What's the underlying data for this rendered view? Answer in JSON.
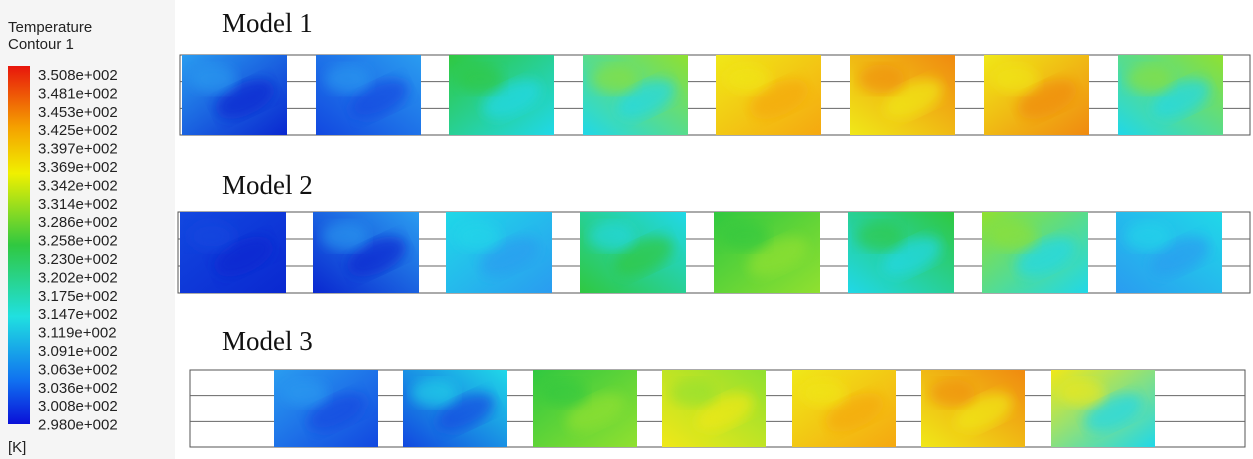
{
  "legend": {
    "title": [
      "Temperature",
      "Contour 1"
    ],
    "labels": [
      "3.508e+002",
      "3.481e+002",
      "3.453e+002",
      "3.425e+002",
      "3.397e+002",
      "3.369e+002",
      "3.342e+002",
      "3.314e+002",
      "3.286e+002",
      "3.258e+002",
      "3.230e+002",
      "3.202e+002",
      "3.175e+002",
      "3.147e+002",
      "3.119e+002",
      "3.091e+002",
      "3.063e+002",
      "3.036e+002",
      "3.008e+002",
      "2.980e+002"
    ],
    "unit": "[K]"
  },
  "models": [
    {
      "title": "Model 1"
    },
    {
      "title": "Model 2"
    },
    {
      "title": "Model 3"
    }
  ]
}
